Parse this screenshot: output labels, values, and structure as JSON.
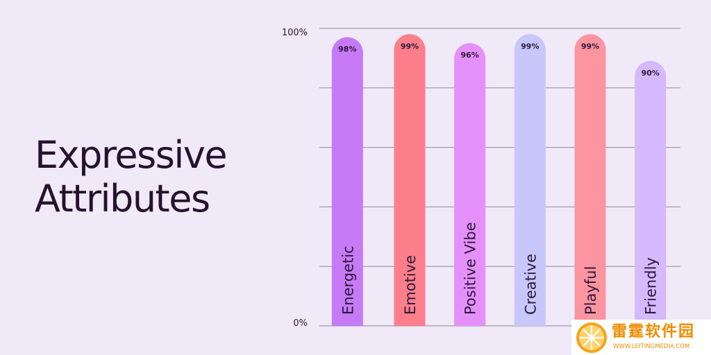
{
  "title_lines": [
    "Expressive",
    "Attributes"
  ],
  "chart_data": {
    "type": "bar",
    "orientation": "vertical",
    "title": "Expressive Attributes",
    "categories": [
      "Energetic",
      "Emotive",
      "Positive Vibe",
      "Creative",
      "Playful",
      "Friendly"
    ],
    "values": [
      98,
      99,
      96,
      99,
      99,
      90
    ],
    "value_labels": [
      "98%",
      "99%",
      "96%",
      "99%",
      "99%",
      "90%"
    ],
    "bar_colors": [
      "#c67af6",
      "#fd7f8b",
      "#e590fa",
      "#c8c7fc",
      "#fd95a0",
      "#d4b9fc"
    ],
    "ylim": [
      0,
      100
    ],
    "y_tick_labels": [
      "0%",
      "100%"
    ],
    "grid": true,
    "legend": false,
    "category_labels_inside_bars": true
  },
  "watermark": {
    "name": "雷霆软件园",
    "url": "WWW.LEITINGMEDIA.COM"
  }
}
